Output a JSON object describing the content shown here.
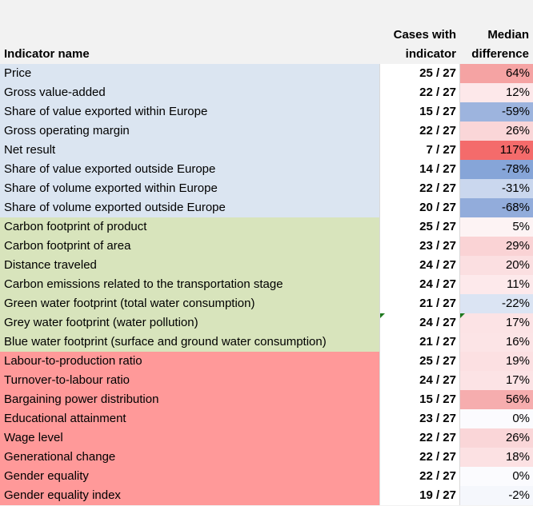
{
  "headers": {
    "name": "Indicator name",
    "cases_line1": "Cases with",
    "cases_line2": "indicator",
    "median_line1": "Median",
    "median_line2": "difference"
  },
  "rows": [
    {
      "name": "Price",
      "cases": "25 / 27",
      "median": "64%",
      "group": "econ",
      "color": "#f5a3a3"
    },
    {
      "name": "Gross value-added",
      "cases": "22 / 27",
      "median": "12%",
      "group": "econ",
      "color": "#fde8ea"
    },
    {
      "name": "Share of value exported within Europe",
      "cases": "15 / 27",
      "median": "-59%",
      "group": "econ",
      "color": "#9db4de"
    },
    {
      "name": "Gross operating margin",
      "cases": "22 / 27",
      "median": "26%",
      "group": "econ",
      "color": "#fad6d8"
    },
    {
      "name": "Net result",
      "cases": "7 / 27",
      "median": "117%",
      "group": "econ",
      "color": "#f46b6b"
    },
    {
      "name": "Share of value exported outside Europe",
      "cases": "14 / 27",
      "median": "-78%",
      "group": "econ",
      "color": "#86a5d8"
    },
    {
      "name": "Share of volume exported within Europe",
      "cases": "22 / 27",
      "median": "-31%",
      "group": "econ",
      "color": "#cad7ee"
    },
    {
      "name": "Share of volume exported outside Europe",
      "cases": "20 / 27",
      "median": "-68%",
      "group": "econ",
      "color": "#92acdb"
    },
    {
      "name": "Carbon footprint of product",
      "cases": "25 / 27",
      "median": "5%",
      "group": "env",
      "color": "#fdf3f4"
    },
    {
      "name": "Carbon footprint of area",
      "cases": "23 / 27",
      "median": "29%",
      "group": "env",
      "color": "#fad3d5"
    },
    {
      "name": "Distance traveled",
      "cases": "24 / 27",
      "median": "20%",
      "group": "env",
      "color": "#fbdfe1"
    },
    {
      "name": "Carbon emissions related to the transportation stage",
      "cases": "24 / 27",
      "median": "11%",
      "group": "env",
      "color": "#fde9eb"
    },
    {
      "name": "Green water footprint (total water consumption)",
      "cases": "21 / 27",
      "median": "-22%",
      "group": "env",
      "color": "#dbe4f3"
    },
    {
      "name": "Grey water footprint (water pollution)",
      "cases": "24 / 27",
      "median": "17%",
      "group": "env",
      "color": "#fce3e5",
      "marks": true
    },
    {
      "name": "Blue water footprint (surface and ground water consumption)",
      "cases": "21 / 27",
      "median": "16%",
      "group": "env",
      "color": "#fce4e6"
    },
    {
      "name": "Labour-to-production ratio",
      "cases": "25 / 27",
      "median": "19%",
      "group": "soc",
      "color": "#fce0e2"
    },
    {
      "name": "Turnover-to-labour ratio",
      "cases": "24 / 27",
      "median": "17%",
      "group": "soc",
      "color": "#fce3e5"
    },
    {
      "name": "Bargaining power distribution",
      "cases": "15 / 27",
      "median": "56%",
      "group": "soc",
      "color": "#f6adae"
    },
    {
      "name": "Educational attainment",
      "cases": "23 / 27",
      "median": "0%",
      "group": "soc",
      "color": "#fbfbfe"
    },
    {
      "name": "Wage level",
      "cases": "22 / 27",
      "median": "26%",
      "group": "soc",
      "color": "#fad6d8"
    },
    {
      "name": "Generational change",
      "cases": "22 / 27",
      "median": "18%",
      "group": "soc",
      "color": "#fce1e3"
    },
    {
      "name": "Gender equality",
      "cases": "22 / 27",
      "median": "0%",
      "group": "soc",
      "color": "#fbfbfe"
    },
    {
      "name": "Gender equality index",
      "cases": "19 / 27",
      "median": "-2%",
      "group": "soc",
      "color": "#f5f7fc"
    }
  ]
}
